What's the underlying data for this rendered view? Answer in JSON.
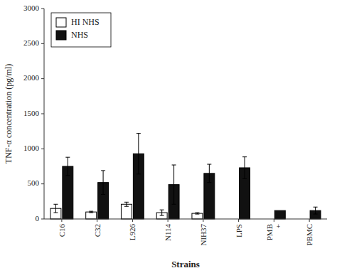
{
  "chart_data": {
    "type": "bar",
    "categories": [
      "C16",
      "C32",
      "L926",
      "N114",
      "NIH37",
      "LPS",
      "PMB\n+",
      "PBMC"
    ],
    "series": [
      {
        "name": "HI NHS",
        "color": "#ffffff",
        "values": [
          150,
          100,
          210,
          90,
          80,
          0,
          0,
          0
        ],
        "errors": [
          60,
          10,
          30,
          40,
          10,
          0,
          0,
          0
        ]
      },
      {
        "name": "NHS",
        "color": "#111111",
        "values": [
          750,
          520,
          930,
          490,
          650,
          730,
          120,
          120
        ],
        "errors": [
          130,
          170,
          290,
          280,
          130,
          155,
          0,
          50
        ]
      }
    ],
    "ylabel": "TNF-α concentration (pg/ml)",
    "xlabel": "Strains",
    "ylim": [
      0,
      3000
    ],
    "yticks": [
      0,
      500,
      1000,
      1500,
      2000,
      2500,
      3000
    ],
    "legend": "upper left",
    "grid": false
  }
}
